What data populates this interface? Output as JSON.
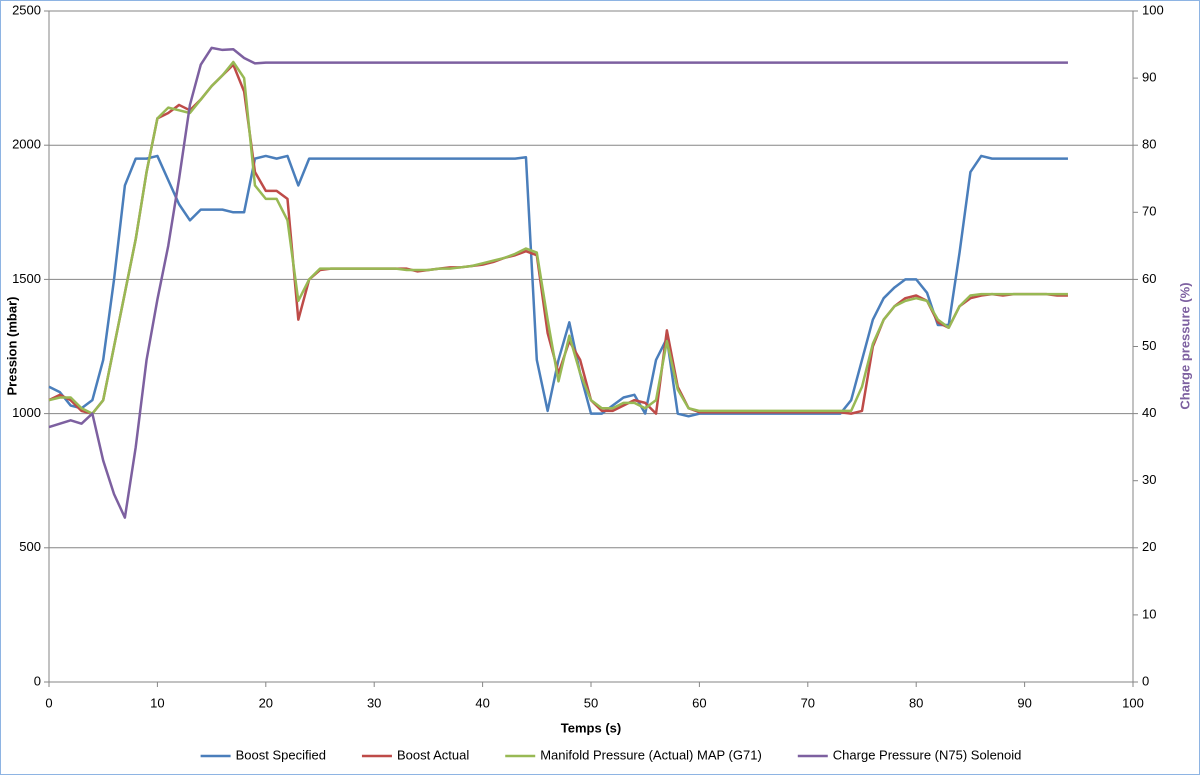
{
  "chart_data": {
    "type": "line",
    "x_label": "Temps (s)",
    "y_label": "Pression (mbar)",
    "y2_label": "Charge pressure (%)",
    "x": [
      0,
      1,
      2,
      3,
      4,
      5,
      6,
      7,
      8,
      9,
      10,
      11,
      12,
      13,
      14,
      15,
      16,
      17,
      18,
      19,
      20,
      21,
      22,
      23,
      24,
      25,
      26,
      27,
      28,
      29,
      30,
      31,
      32,
      33,
      34,
      35,
      36,
      37,
      38,
      39,
      40,
      41,
      42,
      43,
      44,
      45,
      46,
      47,
      48,
      49,
      50,
      51,
      52,
      53,
      54,
      55,
      56,
      57,
      58,
      59,
      60,
      61,
      62,
      63,
      64,
      65,
      66,
      67,
      68,
      69,
      70,
      71,
      72,
      73,
      74,
      75,
      76,
      77,
      78,
      79,
      80,
      81,
      82,
      83,
      84,
      85,
      86,
      87,
      88,
      89,
      90,
      91,
      92,
      93,
      94
    ],
    "xlim": [
      0,
      100
    ],
    "xticks": [
      0,
      10,
      20,
      30,
      40,
      50,
      60,
      70,
      80,
      90,
      100
    ],
    "ylim": [
      0,
      2500
    ],
    "yticks": [
      0,
      500,
      1000,
      1500,
      2000,
      2500
    ],
    "y2lim": [
      0,
      100
    ],
    "y2ticks": [
      0,
      10,
      20,
      30,
      40,
      50,
      60,
      70,
      80,
      90,
      100
    ],
    "grid": true,
    "legend": "bottom",
    "series": [
      {
        "name": "Boost Specified",
        "color": "#4a7ebb",
        "values": [
          1100,
          1080,
          1030,
          1020,
          1050,
          1200,
          1500,
          1850,
          1950,
          1950,
          1960,
          1870,
          1780,
          1720,
          1760,
          1760,
          1760,
          1750,
          1750,
          1950,
          1960,
          1950,
          1960,
          1850,
          1950,
          1950,
          1950,
          1950,
          1950,
          1950,
          1950,
          1950,
          1950,
          1950,
          1950,
          1950,
          1950,
          1950,
          1950,
          1950,
          1950,
          1950,
          1950,
          1950,
          1955,
          1200,
          1010,
          1200,
          1340,
          1150,
          1000,
          1000,
          1030,
          1060,
          1070,
          1000,
          1200,
          1280,
          1000,
          990,
          1000,
          1000,
          1000,
          1000,
          1000,
          1000,
          1000,
          1000,
          1000,
          1000,
          1000,
          1000,
          1000,
          1000,
          1050,
          1200,
          1350,
          1430,
          1470,
          1500,
          1500,
          1450,
          1330,
          1330,
          1600,
          1900,
          1960,
          1950,
          1950,
          1950,
          1950,
          1950,
          1950,
          1950,
          1950
        ]
      },
      {
        "name": "Boost Actual",
        "color": "#be4b48",
        "values": [
          1050,
          1070,
          1050,
          1010,
          1000,
          1050,
          1250,
          1450,
          1650,
          1900,
          2100,
          2120,
          2150,
          2130,
          2170,
          2220,
          2260,
          2300,
          2200,
          1900,
          1830,
          1830,
          1800,
          1350,
          1500,
          1535,
          1540,
          1540,
          1540,
          1540,
          1540,
          1540,
          1540,
          1540,
          1530,
          1535,
          1540,
          1545,
          1545,
          1550,
          1555,
          1565,
          1580,
          1590,
          1605,
          1590,
          1300,
          1150,
          1270,
          1200,
          1050,
          1010,
          1010,
          1030,
          1050,
          1040,
          1000,
          1310,
          1100,
          1020,
          1005,
          1005,
          1005,
          1005,
          1005,
          1005,
          1005,
          1005,
          1005,
          1005,
          1005,
          1005,
          1005,
          1005,
          1000,
          1010,
          1250,
          1350,
          1400,
          1430,
          1440,
          1420,
          1340,
          1320,
          1400,
          1430,
          1440,
          1445,
          1440,
          1445,
          1445,
          1445,
          1445,
          1440,
          1440
        ]
      },
      {
        "name": "Manifold Pressure (Actual) MAP (G71)",
        "color": "#98b954",
        "values": [
          1050,
          1060,
          1060,
          1020,
          1000,
          1050,
          1250,
          1450,
          1650,
          1900,
          2100,
          2140,
          2130,
          2120,
          2170,
          2220,
          2260,
          2310,
          2250,
          1850,
          1800,
          1800,
          1720,
          1420,
          1500,
          1540,
          1540,
          1540,
          1540,
          1540,
          1540,
          1540,
          1540,
          1535,
          1535,
          1535,
          1540,
          1540,
          1545,
          1550,
          1560,
          1570,
          1580,
          1595,
          1615,
          1600,
          1350,
          1120,
          1290,
          1150,
          1050,
          1020,
          1020,
          1040,
          1040,
          1020,
          1050,
          1270,
          1090,
          1020,
          1010,
          1010,
          1010,
          1010,
          1010,
          1010,
          1010,
          1010,
          1010,
          1010,
          1010,
          1010,
          1010,
          1010,
          1010,
          1100,
          1260,
          1350,
          1400,
          1420,
          1430,
          1420,
          1350,
          1320,
          1400,
          1440,
          1445,
          1445,
          1445,
          1445,
          1445,
          1445,
          1445,
          1445,
          1445
        ]
      },
      {
        "name": "Charge Pressure (N75) Solenoid",
        "color": "#7d60a0",
        "axis": "y2",
        "values": [
          38,
          38.5,
          39,
          38.5,
          40,
          33,
          28,
          24.5,
          35,
          48,
          57,
          65,
          75,
          86,
          92,
          94.5,
          94.2,
          94.3,
          93,
          92.2,
          92.3,
          92.3,
          92.3,
          92.3,
          92.3,
          92.3,
          92.3,
          92.3,
          92.3,
          92.3,
          92.3,
          92.3,
          92.3,
          92.3,
          92.3,
          92.3,
          92.3,
          92.3,
          92.3,
          92.3,
          92.3,
          92.3,
          92.3,
          92.3,
          92.3,
          92.3,
          92.3,
          92.3,
          92.3,
          92.3,
          92.3,
          92.3,
          92.3,
          92.3,
          92.3,
          92.3,
          92.3,
          92.3,
          92.3,
          92.3,
          92.3,
          92.3,
          92.3,
          92.3,
          92.3,
          92.3,
          92.3,
          92.3,
          92.3,
          92.3,
          92.3,
          92.3,
          92.3,
          92.3,
          92.3,
          92.3,
          92.3,
          92.3,
          92.3,
          92.3,
          92.3,
          92.3,
          92.3,
          92.3,
          92.3,
          92.3,
          92.3,
          92.3,
          92.3,
          92.3,
          92.3,
          92.3,
          92.3,
          92.3,
          92.3
        ]
      }
    ]
  }
}
